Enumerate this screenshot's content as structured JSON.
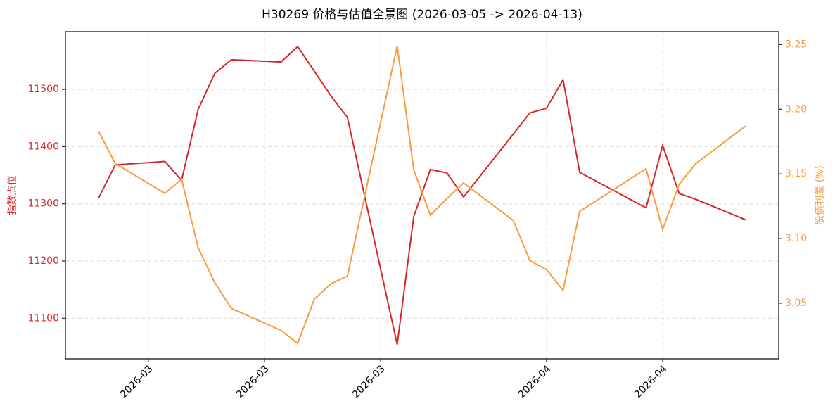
{
  "chart_data": {
    "type": "line",
    "title": "H30269 价格与估值全景图 (2026-03-05 -> 2026-04-13)",
    "ylabel": "指数点位",
    "y2label": "股债利差 (%)",
    "x": [
      "2026-03-05",
      "2026-03-06",
      "2026-03-09",
      "2026-03-10",
      "2026-03-11",
      "2026-03-12",
      "2026-03-13",
      "2026-03-16",
      "2026-03-17",
      "2026-03-18",
      "2026-03-19",
      "2026-03-20",
      "2026-03-23",
      "2026-03-24",
      "2026-03-25",
      "2026-03-26",
      "2026-03-27",
      "2026-03-30",
      "2026-03-31",
      "2026-04-01",
      "2026-04-02",
      "2026-04-03",
      "2026-04-07",
      "2026-04-08",
      "2026-04-09",
      "2026-04-10",
      "2026-04-13"
    ],
    "series": [
      {
        "name": "指数点位",
        "color": "#d62728",
        "axis": "y",
        "values": [
          11310,
          11368,
          11374,
          11341,
          11465,
          11528,
          11552,
          11548,
          11575,
          11532,
          11489,
          11451,
          11054,
          11278,
          11360,
          11354,
          11312,
          11422,
          11459,
          11467,
          11517,
          11355,
          11293,
          11402,
          11318,
          11308,
          11272
        ]
      },
      {
        "name": "股债利差 (%)",
        "color": "#f89c3f",
        "axis": "y2",
        "values": [
          3.183,
          3.158,
          3.135,
          3.146,
          3.093,
          3.066,
          3.046,
          3.029,
          3.019,
          3.053,
          3.065,
          3.071,
          3.249,
          3.153,
          3.118,
          3.131,
          3.143,
          3.114,
          3.083,
          3.076,
          3.06,
          3.121,
          3.154,
          3.107,
          3.142,
          3.158,
          3.187
        ]
      }
    ],
    "xlim": [
      "2026-03-03",
      "2026-04-15"
    ],
    "xticks": [
      {
        "value": "2026-03-08",
        "label": "2026-03"
      },
      {
        "value": "2026-03-15",
        "label": "2026-03"
      },
      {
        "value": "2026-03-22",
        "label": "2026-03"
      },
      {
        "value": "2026-04-01",
        "label": "2026-04"
      },
      {
        "value": "2026-04-08",
        "label": "2026-04"
      }
    ],
    "ylim": [
      11029,
      11601
    ],
    "yticks": [
      11100,
      11200,
      11300,
      11400,
      11500
    ],
    "y2lim": [
      3.007,
      3.26
    ],
    "y2ticks": [
      3.05,
      {
        "value": 3.1,
        "label": "3.10"
      },
      3.15,
      {
        "value": 3.2,
        "label": "3.20"
      },
      3.25
    ],
    "grid": true
  }
}
